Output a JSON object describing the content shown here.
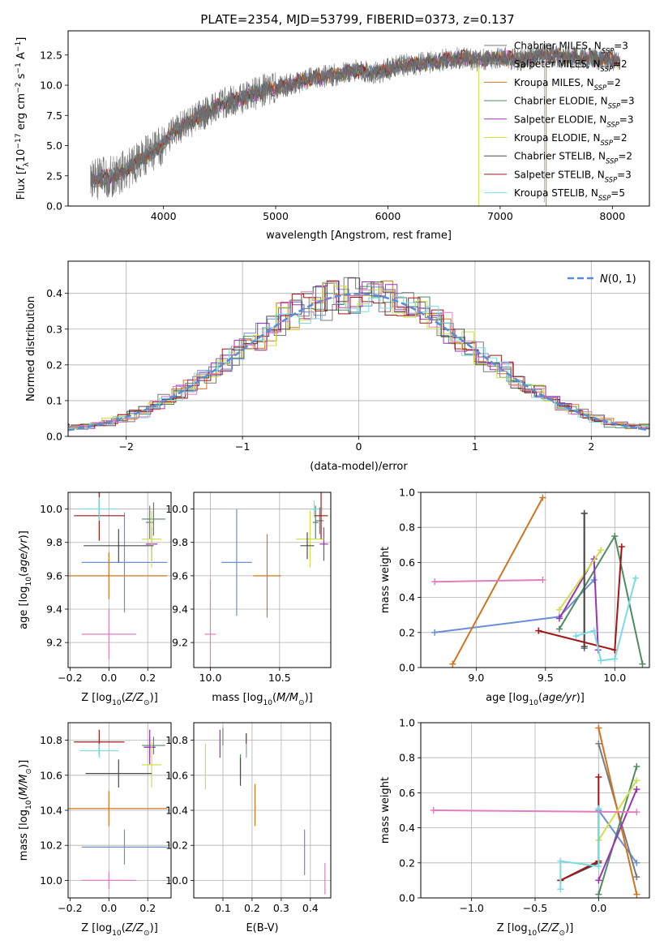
{
  "figure_title": "PLATE=2354, MJD=53799, FIBERID=0373, z=0.137",
  "colors": {
    "Chabrier MILES": "#6a8fd6",
    "Salpeter MILES": "#7a7a7a",
    "Kroupa MILES": "#d2741f",
    "Chabrier ELODIE": "#4f8a60",
    "Salpeter ELODIE": "#9b32b8",
    "Kroupa ELODIE": "#cfe04a",
    "Chabrier STELIB": "#4a4a4a",
    "Salpeter STELIB": "#a41616",
    "Kroupa STELIB": "#79dde0",
    "extra": "#e07fbf",
    "normal_curve": "#5a8bd6"
  },
  "chart_data": [
    {
      "id": "spectrum",
      "type": "line",
      "title": "PLATE=2354, MJD=53799, FIBERID=0373, z=0.137",
      "xlabel": "wavelength [Angstrom, rest frame]",
      "ylabel": "Flux [f_λ 10^-17 erg cm^-2 s^-1 A^-1]",
      "xlim": [
        3150,
        8330
      ],
      "ylim": [
        0,
        14.5
      ],
      "xticks": [
        4000,
        5000,
        6000,
        7000,
        8000
      ],
      "yticks": [
        0.0,
        2.5,
        5.0,
        7.5,
        10.0,
        12.5
      ],
      "grid": false,
      "legend_position": "upper right",
      "data_x_range": [
        3350,
        8070
      ],
      "continuum_points": [
        [
          3350,
          2.1
        ],
        [
          3500,
          2.4
        ],
        [
          3600,
          2.6
        ],
        [
          3700,
          3.2
        ],
        [
          3800,
          3.9
        ],
        [
          3900,
          4.4
        ],
        [
          4000,
          5.2
        ],
        [
          4100,
          6.2
        ],
        [
          4300,
          7.3
        ],
        [
          4500,
          8.4
        ],
        [
          4700,
          8.9
        ],
        [
          4900,
          9.6
        ],
        [
          5100,
          10.0
        ],
        [
          5300,
          10.5
        ],
        [
          5500,
          10.8
        ],
        [
          5700,
          11.2
        ],
        [
          5900,
          11.0
        ],
        [
          6100,
          11.6
        ],
        [
          6300,
          11.8
        ],
        [
          6500,
          12.1
        ],
        [
          6700,
          12.3
        ],
        [
          6800,
          12.0
        ],
        [
          7000,
          12.3
        ],
        [
          7200,
          12.1
        ],
        [
          7400,
          12.5
        ],
        [
          7600,
          12.3
        ],
        [
          7800,
          12.2
        ],
        [
          8000,
          12.1
        ],
        [
          8070,
          11.9
        ]
      ],
      "series": [
        {
          "name": "Chabrier MILES, N_SSP=3"
        },
        {
          "name": "Salpeter MILES, N_SSP=2"
        },
        {
          "name": "Kroupa MILES, N_SSP=2"
        },
        {
          "name": "Chabrier ELODIE, N_SSP=3"
        },
        {
          "name": "Salpeter ELODIE, N_SSP=3"
        },
        {
          "name": "Kroupa ELODIE, N_SSP=2"
        },
        {
          "name": "Chabrier STELIB, N_SSP=2"
        },
        {
          "name": "Salpeter STELIB, N_SSP=3"
        },
        {
          "name": "Kroupa STELIB, N_SSP=5"
        }
      ]
    },
    {
      "id": "residuals",
      "type": "histogram",
      "xlabel": "(data-model)/error",
      "ylabel": "Normed distribution",
      "xlim": [
        -2.5,
        2.5
      ],
      "ylim": [
        0,
        0.49
      ],
      "xticks": [
        -2,
        -1,
        0,
        1,
        2
      ],
      "yticks": [
        0.0,
        0.1,
        0.2,
        0.3,
        0.4
      ],
      "grid": true,
      "legend_position": "upper right",
      "legend": "N(0,1)",
      "bin_width": 0.1
    },
    {
      "id": "age_vs_Z",
      "type": "errorbar",
      "xlabel": "Z [log10(Z/Z_sun)]",
      "ylabel": "age [log10(age/yr)]",
      "xlim": [
        -0.21,
        0.32
      ],
      "ylim": [
        9.05,
        10.1
      ],
      "xticks": [
        -0.2,
        0.0,
        0.2
      ],
      "yticks": [
        9.2,
        9.4,
        9.6,
        9.8,
        10.0
      ],
      "grid": true,
      "points": [
        {
          "c": "Chabrier MILES",
          "x": 0.08,
          "xerr": 0.22,
          "y": 9.68,
          "yerr": 0.3
        },
        {
          "c": "Salpeter MILES",
          "x": 0.21,
          "xerr": 0.02,
          "y": 9.92,
          "yerr": 0.1
        },
        {
          "c": "Kroupa MILES",
          "x": 0.0,
          "xerr": 0.3,
          "y": 9.6,
          "yerr": 0.14
        },
        {
          "c": "Chabrier ELODIE",
          "x": 0.23,
          "xerr": 0.06,
          "y": 9.94,
          "yerr": 0.1
        },
        {
          "c": "Salpeter ELODIE",
          "x": 0.22,
          "xerr": 0.03,
          "y": 9.79,
          "yerr": 0.1
        },
        {
          "c": "Kroupa ELODIE",
          "x": 0.22,
          "xerr": 0.05,
          "y": 9.82,
          "yerr": 0.17
        },
        {
          "c": "Chabrier STELIB",
          "x": 0.05,
          "xerr": 0.18,
          "y": 9.78,
          "yerr": 0.1
        },
        {
          "c": "Salpeter STELIB",
          "x": -0.05,
          "xerr": 0.13,
          "y": 9.96,
          "yerr": 0.15
        },
        {
          "c": "Kroupa STELIB",
          "x": -0.05,
          "xerr": 0.1,
          "y": 10.0,
          "yerr": 0.07
        },
        {
          "c": "extra",
          "x": 0.0,
          "xerr": 0.14,
          "y": 9.25,
          "yerr": 0.15
        }
      ]
    },
    {
      "id": "age_vs_mass",
      "type": "errorbar",
      "xlabel": "mass [log10(M/M_sun)]",
      "ylabel": "",
      "xlim": [
        9.88,
        10.87
      ],
      "ylim": [
        9.05,
        10.1
      ],
      "xticks": [
        10.0,
        10.5
      ],
      "yticks": [
        9.2,
        9.4,
        9.6,
        9.8,
        10.0
      ],
      "grid": true,
      "points": [
        {
          "c": "Chabrier MILES",
          "x": 10.19,
          "xerr": 0.11,
          "y": 9.68,
          "yerr": 0.32
        },
        {
          "c": "Salpeter MILES",
          "x": 10.79,
          "xerr": 0.03,
          "y": 9.93,
          "yerr": 0.08
        },
        {
          "c": "Kroupa MILES",
          "x": 10.41,
          "xerr": 0.1,
          "y": 9.6,
          "yerr": 0.25
        },
        {
          "c": "Chabrier ELODIE",
          "x": 10.76,
          "xerr": 0.02,
          "y": 9.92,
          "yerr": 0.1
        },
        {
          "c": "Salpeter ELODIE",
          "x": 10.82,
          "xerr": 0.03,
          "y": 9.79,
          "yerr": 0.1
        },
        {
          "c": "Kroupa ELODIE",
          "x": 10.72,
          "xerr": 0.1,
          "y": 9.82,
          "yerr": 0.17
        },
        {
          "c": "Chabrier STELIB",
          "x": 10.7,
          "xerr": 0.05,
          "y": 9.78,
          "yerr": 0.08
        },
        {
          "c": "Salpeter STELIB",
          "x": 10.8,
          "xerr": 0.05,
          "y": 9.96,
          "yerr": 0.14
        },
        {
          "c": "Kroupa STELIB",
          "x": 10.75,
          "xerr": 0.03,
          "y": 10.0,
          "yerr": 0.05
        },
        {
          "c": "extra",
          "x": 10.0,
          "xerr": 0.04,
          "y": 9.25,
          "yerr": 0.33
        }
      ]
    },
    {
      "id": "weight_vs_age",
      "type": "line",
      "xlabel": "age [log10(age/yr)]",
      "ylabel": "mass weight",
      "xlim": [
        8.6,
        10.25
      ],
      "ylim": [
        0,
        1
      ],
      "xticks": [
        9.0,
        9.5,
        10.0
      ],
      "yticks": [
        0.0,
        0.2,
        0.4,
        0.6,
        0.8,
        1.0
      ],
      "grid": true,
      "series": [
        {
          "c": "Chabrier MILES",
          "x": [
            8.7,
            9.6,
            9.85
          ],
          "y": [
            0.2,
            0.29,
            0.5
          ]
        },
        {
          "c": "Salpeter MILES",
          "x": [
            9.78,
            9.78
          ],
          "y": [
            0.11,
            0.88
          ]
        },
        {
          "c": "Kroupa MILES",
          "x": [
            8.83,
            9.48
          ],
          "y": [
            0.02,
            0.97
          ]
        },
        {
          "c": "Chabrier ELODIE",
          "x": [
            9.6,
            10.0,
            10.2
          ],
          "y": [
            0.22,
            0.75,
            0.02
          ]
        },
        {
          "c": "Salpeter ELODIE",
          "x": [
            9.6,
            9.85,
            9.88
          ],
          "y": [
            0.28,
            0.62,
            0.1
          ]
        },
        {
          "c": "Kroupa ELODIE",
          "x": [
            9.6,
            9.9
          ],
          "y": [
            0.33,
            0.67
          ]
        },
        {
          "c": "Chabrier STELIB",
          "x": [
            9.78,
            9.78
          ],
          "y": [
            0.12,
            0.88
          ]
        },
        {
          "c": "Salpeter STELIB",
          "x": [
            9.45,
            10.0,
            10.05
          ],
          "y": [
            0.21,
            0.1,
            0.69
          ]
        },
        {
          "c": "Kroupa STELIB",
          "x": [
            9.72,
            9.85,
            9.9,
            10.0,
            10.15
          ],
          "y": [
            0.18,
            0.21,
            0.04,
            0.05,
            0.51
          ]
        },
        {
          "c": "extra",
          "x": [
            8.7,
            9.48
          ],
          "y": [
            0.49,
            0.5
          ]
        }
      ]
    },
    {
      "id": "mass_vs_Z",
      "type": "errorbar",
      "xlabel": "Z [log10(Z/Z_sun)]",
      "ylabel": "mass [log10(M/M_sun)]",
      "xlim": [
        -0.21,
        0.32
      ],
      "ylim": [
        9.9,
        10.9
      ],
      "xticks": [
        -0.2,
        0.0,
        0.2
      ],
      "yticks": [
        10.0,
        10.2,
        10.4,
        10.6,
        10.8
      ],
      "grid": true,
      "points": [
        {
          "c": "Chabrier MILES",
          "x": 0.08,
          "xerr": 0.22,
          "y": 10.19,
          "yerr": 0.1
        },
        {
          "c": "Salpeter MILES",
          "x": 0.21,
          "xerr": 0.03,
          "y": 10.76,
          "yerr": 0.06
        },
        {
          "c": "Kroupa MILES",
          "x": 0.0,
          "xerr": 0.3,
          "y": 10.41,
          "yerr": 0.1
        },
        {
          "c": "Chabrier ELODIE",
          "x": 0.23,
          "xerr": 0.06,
          "y": 10.77,
          "yerr": 0.05
        },
        {
          "c": "Salpeter ELODIE",
          "x": 0.21,
          "xerr": 0.03,
          "y": 10.76,
          "yerr": 0.1
        },
        {
          "c": "Kroupa ELODIE",
          "x": 0.22,
          "xerr": 0.05,
          "y": 10.66,
          "yerr": 0.13
        },
        {
          "c": "Chabrier STELIB",
          "x": 0.05,
          "xerr": 0.17,
          "y": 10.61,
          "yerr": 0.08
        },
        {
          "c": "Salpeter STELIB",
          "x": -0.05,
          "xerr": 0.13,
          "y": 10.79,
          "yerr": 0.07
        },
        {
          "c": "Kroupa STELIB",
          "x": -0.05,
          "xerr": 0.1,
          "y": 10.74,
          "yerr": 0.04
        },
        {
          "c": "extra",
          "x": 0.0,
          "xerr": 0.14,
          "y": 10.0,
          "yerr": 0.05
        }
      ]
    },
    {
      "id": "mass_vs_ebv",
      "type": "errorbar",
      "xlabel": "E(B-V)",
      "ylabel": "",
      "xlim": [
        0.0,
        0.47
      ],
      "ylim": [
        9.9,
        10.9
      ],
      "xticks": [
        0.1,
        0.2,
        0.3,
        0.4
      ],
      "yticks": [
        10.0,
        10.2,
        10.4,
        10.6,
        10.8
      ],
      "grid": true,
      "points": [
        {
          "c": "Chabrier MILES",
          "x": 0.38,
          "xerr": 0.0,
          "y": 10.16,
          "yerr": 0.13
        },
        {
          "c": "Salpeter MILES",
          "x": 0.1,
          "xerr": 0.0,
          "y": 10.82,
          "yerr": 0.05
        },
        {
          "c": "Kroupa MILES",
          "x": 0.21,
          "xerr": 0.0,
          "y": 10.43,
          "yerr": 0.12
        },
        {
          "c": "Chabrier ELODIE",
          "x": 0.16,
          "xerr": 0.0,
          "y": 10.65,
          "yerr": 0.07
        },
        {
          "c": "Salpeter ELODIE",
          "x": 0.09,
          "xerr": 0.0,
          "y": 10.78,
          "yerr": 0.08
        },
        {
          "c": "Kroupa ELODIE",
          "x": 0.04,
          "xerr": 0.0,
          "y": 10.65,
          "yerr": 0.13
        },
        {
          "c": "Chabrier STELIB",
          "x": 0.16,
          "xerr": 0.0,
          "y": 10.62,
          "yerr": 0.08
        },
        {
          "c": "Salpeter STELIB",
          "x": 0.18,
          "xerr": 0.0,
          "y": 10.77,
          "yerr": 0.07
        },
        {
          "c": "Kroupa STELIB",
          "x": 0.18,
          "xerr": 0.0,
          "y": 10.74,
          "yerr": 0.04
        },
        {
          "c": "extra",
          "x": 0.45,
          "xerr": 0.0,
          "y": 10.01,
          "yerr": 0.09
        }
      ]
    },
    {
      "id": "weight_vs_Z",
      "type": "line",
      "xlabel": "Z [log10(Z/Z_sun)]",
      "ylabel": "mass weight",
      "xlim": [
        -1.4,
        0.4
      ],
      "ylim": [
        0,
        1
      ],
      "xticks": [
        -1.0,
        -0.5,
        0.0
      ],
      "yticks": [
        0.0,
        0.2,
        0.4,
        0.6,
        0.8,
        1.0
      ],
      "grid": true,
      "series": [
        {
          "c": "Chabrier MILES",
          "x": [
            0.0,
            0.3
          ],
          "y": [
            0.5,
            0.2
          ]
        },
        {
          "c": "Salpeter MILES",
          "x": [
            0.0,
            0.3
          ],
          "y": [
            0.88,
            0.12
          ]
        },
        {
          "c": "Kroupa MILES",
          "x": [
            0.0,
            0.3
          ],
          "y": [
            0.97,
            0.02
          ]
        },
        {
          "c": "Chabrier ELODIE",
          "x": [
            0.0,
            0.3
          ],
          "y": [
            0.02,
            0.75
          ]
        },
        {
          "c": "Salpeter ELODIE",
          "x": [
            0.0,
            0.3
          ],
          "y": [
            0.1,
            0.62
          ]
        },
        {
          "c": "Kroupa ELODIE",
          "x": [
            0.0,
            0.3
          ],
          "y": [
            0.33,
            0.67
          ]
        },
        {
          "c": "Chabrier STELIB",
          "x": [
            -0.3,
            0.0
          ],
          "y": [
            0.1,
            0.2
          ]
        },
        {
          "c": "Salpeter STELIB",
          "x": [
            -0.3,
            0.0,
            0.0
          ],
          "y": [
            0.1,
            0.21,
            0.69
          ]
        },
        {
          "c": "Kroupa STELIB",
          "x": [
            -0.3,
            -0.3,
            0.0,
            0.0
          ],
          "y": [
            0.05,
            0.21,
            0.18,
            0.51
          ]
        },
        {
          "c": "extra",
          "x": [
            -1.3,
            0.3
          ],
          "y": [
            0.5,
            0.49
          ]
        }
      ]
    }
  ]
}
